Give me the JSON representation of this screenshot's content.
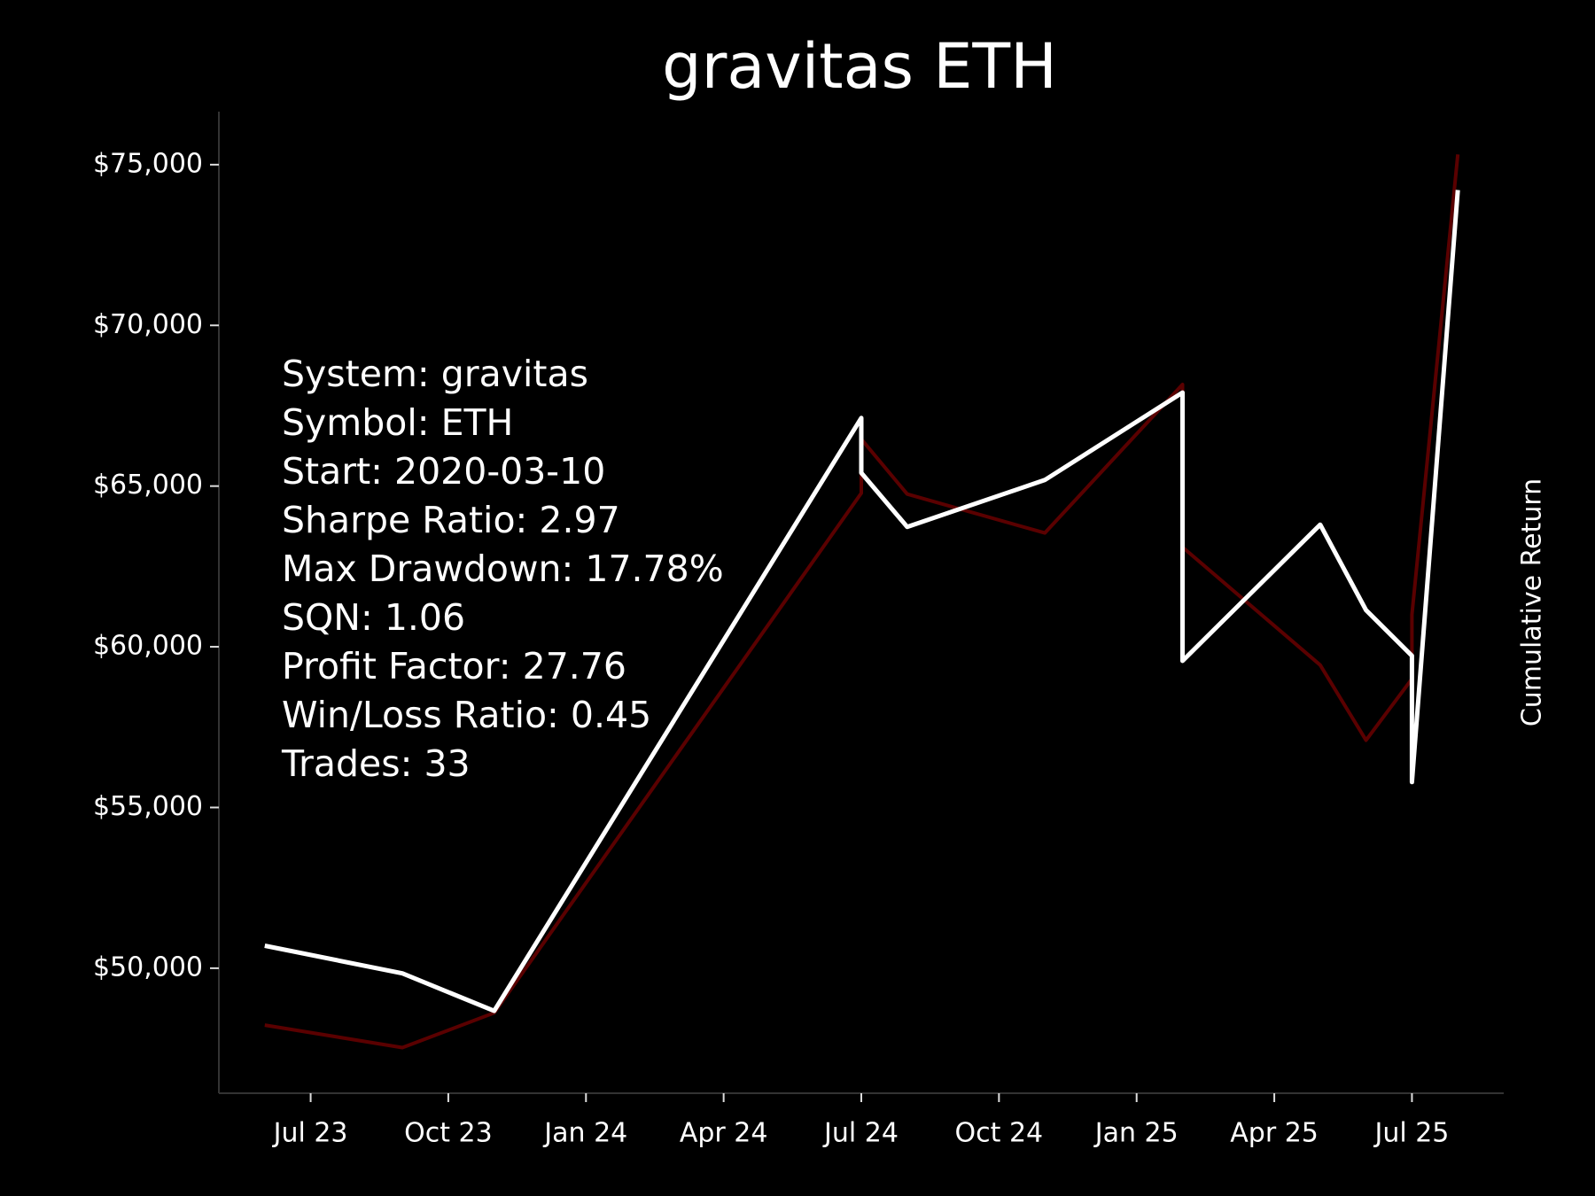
{
  "chart_data": {
    "type": "line",
    "title": "gravitas ETH",
    "y2_label": "Cumulative Return",
    "annotation": [
      "System: gravitas",
      "Symbol: ETH",
      "Start: 2020-03-10",
      "Sharpe Ratio: 2.97",
      "Max Drawdown: 17.78%",
      "SQN: 1.06",
      "Profit Factor: 27.76",
      "Win/Loss Ratio: 0.45",
      "Trades: 33"
    ],
    "x": [
      "2023-06",
      "2023-09",
      "2023-11",
      "2024-07",
      "2024-07",
      "2024-08",
      "2024-11",
      "2025-02",
      "2025-02",
      "2025-05",
      "2025-06",
      "2025-07",
      "2025-07",
      "2025-08"
    ],
    "series": [
      {
        "color": "#5a0000",
        "values": [
          48230,
          47530,
          48610,
          64780,
          66460,
          64750,
          63540,
          68160,
          63100,
          59430,
          57090,
          59000,
          61000,
          75320
        ]
      },
      {
        "color": "#ffffff",
        "values": [
          50700,
          49840,
          48670,
          67120,
          65410,
          63730,
          65190,
          67910,
          59560,
          63800,
          61140,
          59720,
          55790,
          74210
        ]
      }
    ],
    "xlim": [
      "2023-05",
      "2025-09"
    ],
    "xticks": [
      {
        "value": "2023-07",
        "label": "Jul 23"
      },
      {
        "value": "2023-10",
        "label": "Oct 23"
      },
      {
        "value": "2024-01",
        "label": "Jan 24"
      },
      {
        "value": "2024-04",
        "label": "Apr 24"
      },
      {
        "value": "2024-07",
        "label": "Jul 24"
      },
      {
        "value": "2024-10",
        "label": "Oct 24"
      },
      {
        "value": "2025-01",
        "label": "Jan 25"
      },
      {
        "value": "2025-04",
        "label": "Apr 25"
      },
      {
        "value": "2025-07",
        "label": "Jul 25"
      }
    ],
    "ylim": [
      46110,
      76650
    ],
    "yticks": [
      {
        "value": 50000,
        "label": "$50,000"
      },
      {
        "value": 55000,
        "label": "$55,000"
      },
      {
        "value": 60000,
        "label": "$60,000"
      },
      {
        "value": 65000,
        "label": "$65,000"
      },
      {
        "value": 70000,
        "label": "$70,000"
      },
      {
        "value": 75000,
        "label": "$75,000"
      }
    ],
    "grid": false
  }
}
